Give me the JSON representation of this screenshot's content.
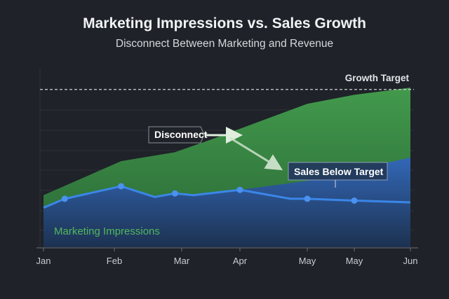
{
  "chart_data": {
    "type": "area",
    "title": "Marketing Impressions vs. Sales Growth",
    "subtitle": "Disconnect Between Marketing and Revenue",
    "xlabel": "",
    "ylabel": "",
    "x_ticks": [
      "Jan",
      "Feb",
      "Mar",
      "Apr",
      "May",
      "May",
      "Jun"
    ],
    "ylim": [
      0,
      100
    ],
    "y_scale_note_unprinted": true,
    "grid": "horizontal",
    "series": [
      {
        "name": "Marketing Impressions",
        "kind": "area",
        "color": "#3f9a4a",
        "x": [
          0,
          1.1,
          1.9,
          2.5,
          4.0,
          5.0,
          6.0
        ],
        "y": [
          29,
          48,
          53,
          60,
          80,
          85,
          89
        ]
      },
      {
        "kind": "area",
        "color": "#2f63b8",
        "x": [
          0,
          0.3,
          1.1,
          1.6,
          1.9,
          2.2,
          3.0,
          4.0,
          6.0
        ],
        "y": [
          22,
          27,
          34,
          28,
          30,
          29,
          32,
          37,
          50
        ]
      },
      {
        "kind": "line",
        "color": "#3b86e8",
        "x": [
          0,
          0.3,
          1.1,
          1.6,
          1.9,
          2.2,
          3.0,
          3.75,
          4.0,
          5.0,
          6.0
        ],
        "y": [
          22,
          27,
          34,
          28,
          30,
          29,
          32,
          27,
          27,
          26,
          25
        ],
        "markers_at": [
          0.3,
          1.1,
          1.9,
          3.0,
          4.0,
          5.0
        ]
      }
    ],
    "reference_line": {
      "label": "Growth Target",
      "y": 88,
      "style": "dashed"
    },
    "annotations": [
      {
        "text": "Disconnect"
      },
      {
        "text": "Sales Below Target"
      }
    ],
    "series_label": "Marketing Impressions"
  }
}
